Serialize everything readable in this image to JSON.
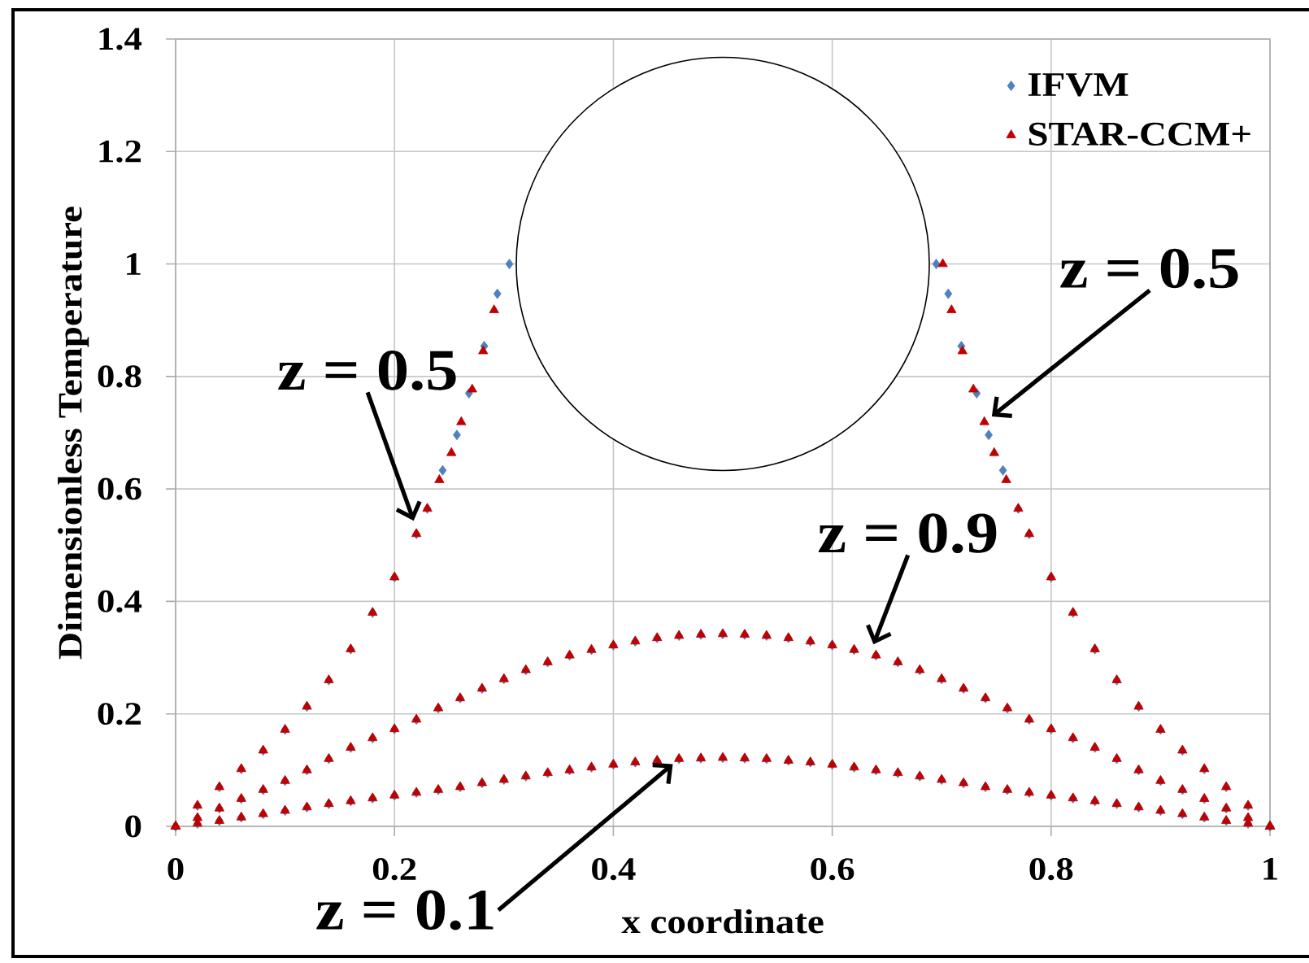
{
  "chart_data": {
    "type": "scatter",
    "xlabel": "x coordinate",
    "ylabel": "Dimensionless Temperature",
    "xlim": [
      0,
      1
    ],
    "ylim": [
      0,
      1.4
    ],
    "xticks": [
      0,
      0.2,
      0.4,
      0.6,
      0.8,
      1
    ],
    "yticks": [
      0,
      0.2,
      0.4,
      0.6,
      0.8,
      1,
      1.2,
      1.4
    ],
    "grid": true,
    "legend": "top right",
    "series": [
      {
        "name": "IFVM",
        "color": "#4f81bd",
        "marker": "diamond",
        "x": [
          0,
          0.02,
          0.04,
          0.06,
          0.08,
          0.1,
          0.12,
          0.14,
          0.16,
          0.18,
          0.2,
          0.22,
          0.23,
          0.244,
          0.257,
          0.268,
          0.282,
          0.294,
          0.305,
          0.695,
          0.706,
          0.718,
          0.732,
          0.743,
          0.756,
          0.77,
          0.78,
          0.8,
          0.82,
          0.84,
          0.86,
          0.88,
          0.9,
          0.92,
          0.94,
          0.96,
          0.98,
          1,
          0,
          0.02,
          0.04,
          0.06,
          0.08,
          0.1,
          0.12,
          0.14,
          0.16,
          0.18,
          0.2,
          0.22,
          0.24,
          0.26,
          0.28,
          0.3,
          0.32,
          0.34,
          0.36,
          0.38,
          0.4,
          0.42,
          0.44,
          0.46,
          0.48,
          0.5,
          0.52,
          0.54,
          0.56,
          0.58,
          0.6,
          0.62,
          0.64,
          0.66,
          0.68,
          0.7,
          0.72,
          0.74,
          0.76,
          0.78,
          0.8,
          0.82,
          0.84,
          0.86,
          0.88,
          0.9,
          0.92,
          0.94,
          0.96,
          0.98,
          1,
          0,
          0.02,
          0.04,
          0.06,
          0.08,
          0.1,
          0.12,
          0.14,
          0.16,
          0.18,
          0.2,
          0.22,
          0.24,
          0.26,
          0.28,
          0.3,
          0.32,
          0.34,
          0.36,
          0.38,
          0.4,
          0.42,
          0.44,
          0.46,
          0.48,
          0.5,
          0.52,
          0.54,
          0.56,
          0.58,
          0.6,
          0.62,
          0.64,
          0.66,
          0.68,
          0.7,
          0.72,
          0.74,
          0.76,
          0.78,
          0.8,
          0.82,
          0.84,
          0.86,
          0.88,
          0.9,
          0.92,
          0.94,
          0.96,
          0.98,
          1
        ],
        "values": [
          0,
          0.037,
          0.07,
          0.102,
          0.135,
          0.172,
          0.213,
          0.26,
          0.315,
          0.38,
          0.443,
          0.52,
          0.565,
          0.633,
          0.696,
          0.77,
          0.854,
          0.947,
          1,
          1,
          0.947,
          0.854,
          0.77,
          0.696,
          0.633,
          0.565,
          0.52,
          0.443,
          0.38,
          0.315,
          0.26,
          0.213,
          0.172,
          0.135,
          0.102,
          0.07,
          0.037,
          0,
          0,
          0.015,
          0.032,
          0.049,
          0.065,
          0.081,
          0.1,
          0.12,
          0.14,
          0.157,
          0.173,
          0.19,
          0.21,
          0.228,
          0.245,
          0.262,
          0.278,
          0.292,
          0.304,
          0.314,
          0.322,
          0.329,
          0.335,
          0.339,
          0.341,
          0.342,
          0.341,
          0.339,
          0.335,
          0.329,
          0.322,
          0.314,
          0.304,
          0.292,
          0.278,
          0.262,
          0.245,
          0.228,
          0.21,
          0.19,
          0.173,
          0.157,
          0.14,
          0.12,
          0.1,
          0.081,
          0.065,
          0.049,
          0.032,
          0.015,
          0,
          0,
          0.005,
          0.01,
          0.016,
          0.022,
          0.028,
          0.034,
          0.04,
          0.045,
          0.05,
          0.055,
          0.06,
          0.065,
          0.07,
          0.077,
          0.083,
          0.089,
          0.095,
          0.1,
          0.105,
          0.11,
          0.114,
          0.117,
          0.12,
          0.121,
          0.122,
          0.121,
          0.12,
          0.117,
          0.114,
          0.11,
          0.105,
          0.1,
          0.095,
          0.089,
          0.083,
          0.077,
          0.07,
          0.065,
          0.06,
          0.055,
          0.05,
          0.045,
          0.04,
          0.034,
          0.028,
          0.022,
          0.016,
          0.01,
          0.005,
          0
        ]
      },
      {
        "name": "STAR-CCM+",
        "color": "#c00000",
        "marker": "triangle",
        "x": [
          0,
          0.02,
          0.04,
          0.06,
          0.08,
          0.1,
          0.12,
          0.14,
          0.16,
          0.18,
          0.2,
          0.22,
          0.23,
          0.241,
          0.252,
          0.261,
          0.271,
          0.281,
          0.291,
          0.701,
          0.709,
          0.719,
          0.729,
          0.739,
          0.748,
          0.759,
          0.77,
          0.78,
          0.8,
          0.82,
          0.84,
          0.86,
          0.88,
          0.9,
          0.92,
          0.94,
          0.96,
          0.98,
          1,
          0,
          0.02,
          0.04,
          0.06,
          0.08,
          0.1,
          0.12,
          0.14,
          0.16,
          0.18,
          0.2,
          0.22,
          0.24,
          0.26,
          0.28,
          0.3,
          0.32,
          0.34,
          0.36,
          0.38,
          0.4,
          0.42,
          0.44,
          0.46,
          0.48,
          0.5,
          0.52,
          0.54,
          0.56,
          0.58,
          0.6,
          0.62,
          0.64,
          0.66,
          0.68,
          0.7,
          0.72,
          0.74,
          0.76,
          0.78,
          0.8,
          0.82,
          0.84,
          0.86,
          0.88,
          0.9,
          0.92,
          0.94,
          0.96,
          0.98,
          1,
          0,
          0.02,
          0.04,
          0.06,
          0.08,
          0.1,
          0.12,
          0.14,
          0.16,
          0.18,
          0.2,
          0.22,
          0.24,
          0.26,
          0.28,
          0.3,
          0.32,
          0.34,
          0.36,
          0.38,
          0.4,
          0.42,
          0.44,
          0.46,
          0.48,
          0.5,
          0.52,
          0.54,
          0.56,
          0.58,
          0.6,
          0.62,
          0.64,
          0.66,
          0.68,
          0.7,
          0.72,
          0.74,
          0.76,
          0.78,
          0.8,
          0.82,
          0.84,
          0.86,
          0.88,
          0.9,
          0.92,
          0.94,
          0.96,
          0.98,
          1
        ],
        "values": [
          0,
          0.037,
          0.07,
          0.102,
          0.135,
          0.172,
          0.213,
          0.26,
          0.315,
          0.38,
          0.443,
          0.52,
          0.565,
          0.616,
          0.664,
          0.719,
          0.777,
          0.845,
          0.918,
          1,
          0.918,
          0.845,
          0.777,
          0.719,
          0.664,
          0.616,
          0.565,
          0.52,
          0.443,
          0.38,
          0.315,
          0.26,
          0.213,
          0.172,
          0.135,
          0.102,
          0.07,
          0.037,
          0,
          0,
          0.015,
          0.032,
          0.049,
          0.065,
          0.081,
          0.1,
          0.12,
          0.14,
          0.157,
          0.173,
          0.19,
          0.21,
          0.228,
          0.245,
          0.262,
          0.278,
          0.292,
          0.304,
          0.314,
          0.322,
          0.329,
          0.335,
          0.339,
          0.341,
          0.342,
          0.341,
          0.339,
          0.335,
          0.329,
          0.322,
          0.314,
          0.304,
          0.292,
          0.278,
          0.262,
          0.245,
          0.228,
          0.21,
          0.19,
          0.173,
          0.157,
          0.14,
          0.12,
          0.1,
          0.081,
          0.065,
          0.049,
          0.032,
          0.015,
          0,
          0,
          0.005,
          0.01,
          0.016,
          0.022,
          0.028,
          0.034,
          0.04,
          0.045,
          0.05,
          0.055,
          0.06,
          0.065,
          0.07,
          0.077,
          0.083,
          0.089,
          0.095,
          0.1,
          0.105,
          0.11,
          0.114,
          0.117,
          0.12,
          0.121,
          0.122,
          0.121,
          0.12,
          0.117,
          0.114,
          0.11,
          0.105,
          0.1,
          0.095,
          0.089,
          0.083,
          0.077,
          0.07,
          0.065,
          0.06,
          0.055,
          0.05,
          0.045,
          0.04,
          0.034,
          0.028,
          0.022,
          0.016,
          0.01,
          0.005,
          0
        ]
      }
    ],
    "annotations": [
      {
        "text": "z = 0.5",
        "x": 0.22,
        "y": 0.53
      },
      {
        "text": "z = 0.5",
        "x": 0.74,
        "y": 0.72
      },
      {
        "text": "z = 0.9",
        "x": 0.635,
        "y": 0.31
      },
      {
        "text": "z = 0.1",
        "x": 0.46,
        "y": 0.12
      }
    ]
  }
}
